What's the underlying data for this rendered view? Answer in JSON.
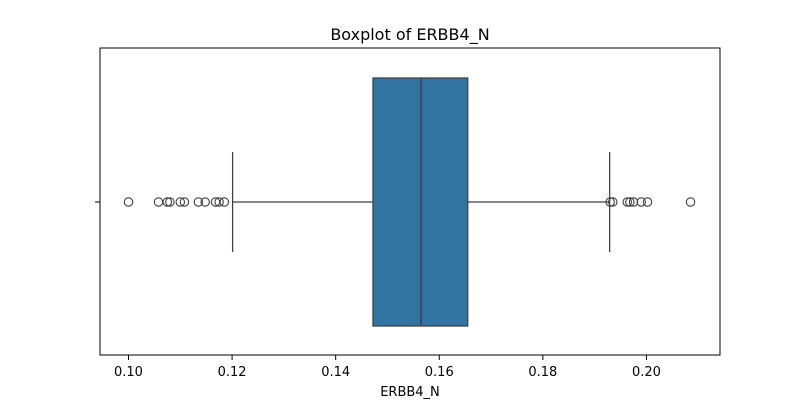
{
  "chart_data": {
    "type": "boxplot",
    "title": "Boxplot of ERBB4_N",
    "xlabel": "ERBB4_N",
    "ylabel": "",
    "xlim": [
      0.0945,
      0.2142
    ],
    "x_ticks": [
      0.1,
      0.12,
      0.14,
      0.16,
      0.18,
      0.2
    ],
    "x_tick_labels": [
      "0.10",
      "0.12",
      "0.14",
      "0.16",
      "0.18",
      "0.20"
    ],
    "orientation": "horizontal",
    "box_color": "#3274a1",
    "line_color": "#3f3f3f",
    "stats": {
      "whisker_low": 0.1201,
      "q1": 0.1472,
      "median": 0.1565,
      "q3": 0.1655,
      "whisker_high": 0.1929
    },
    "outliers": [
      0.1,
      0.1058,
      0.1075,
      0.108,
      0.11,
      0.1108,
      0.1135,
      0.1148,
      0.1168,
      0.1175,
      0.1185,
      0.193,
      0.1935,
      0.1963,
      0.1968,
      0.1975,
      0.199,
      0.2002,
      0.2085
    ]
  }
}
